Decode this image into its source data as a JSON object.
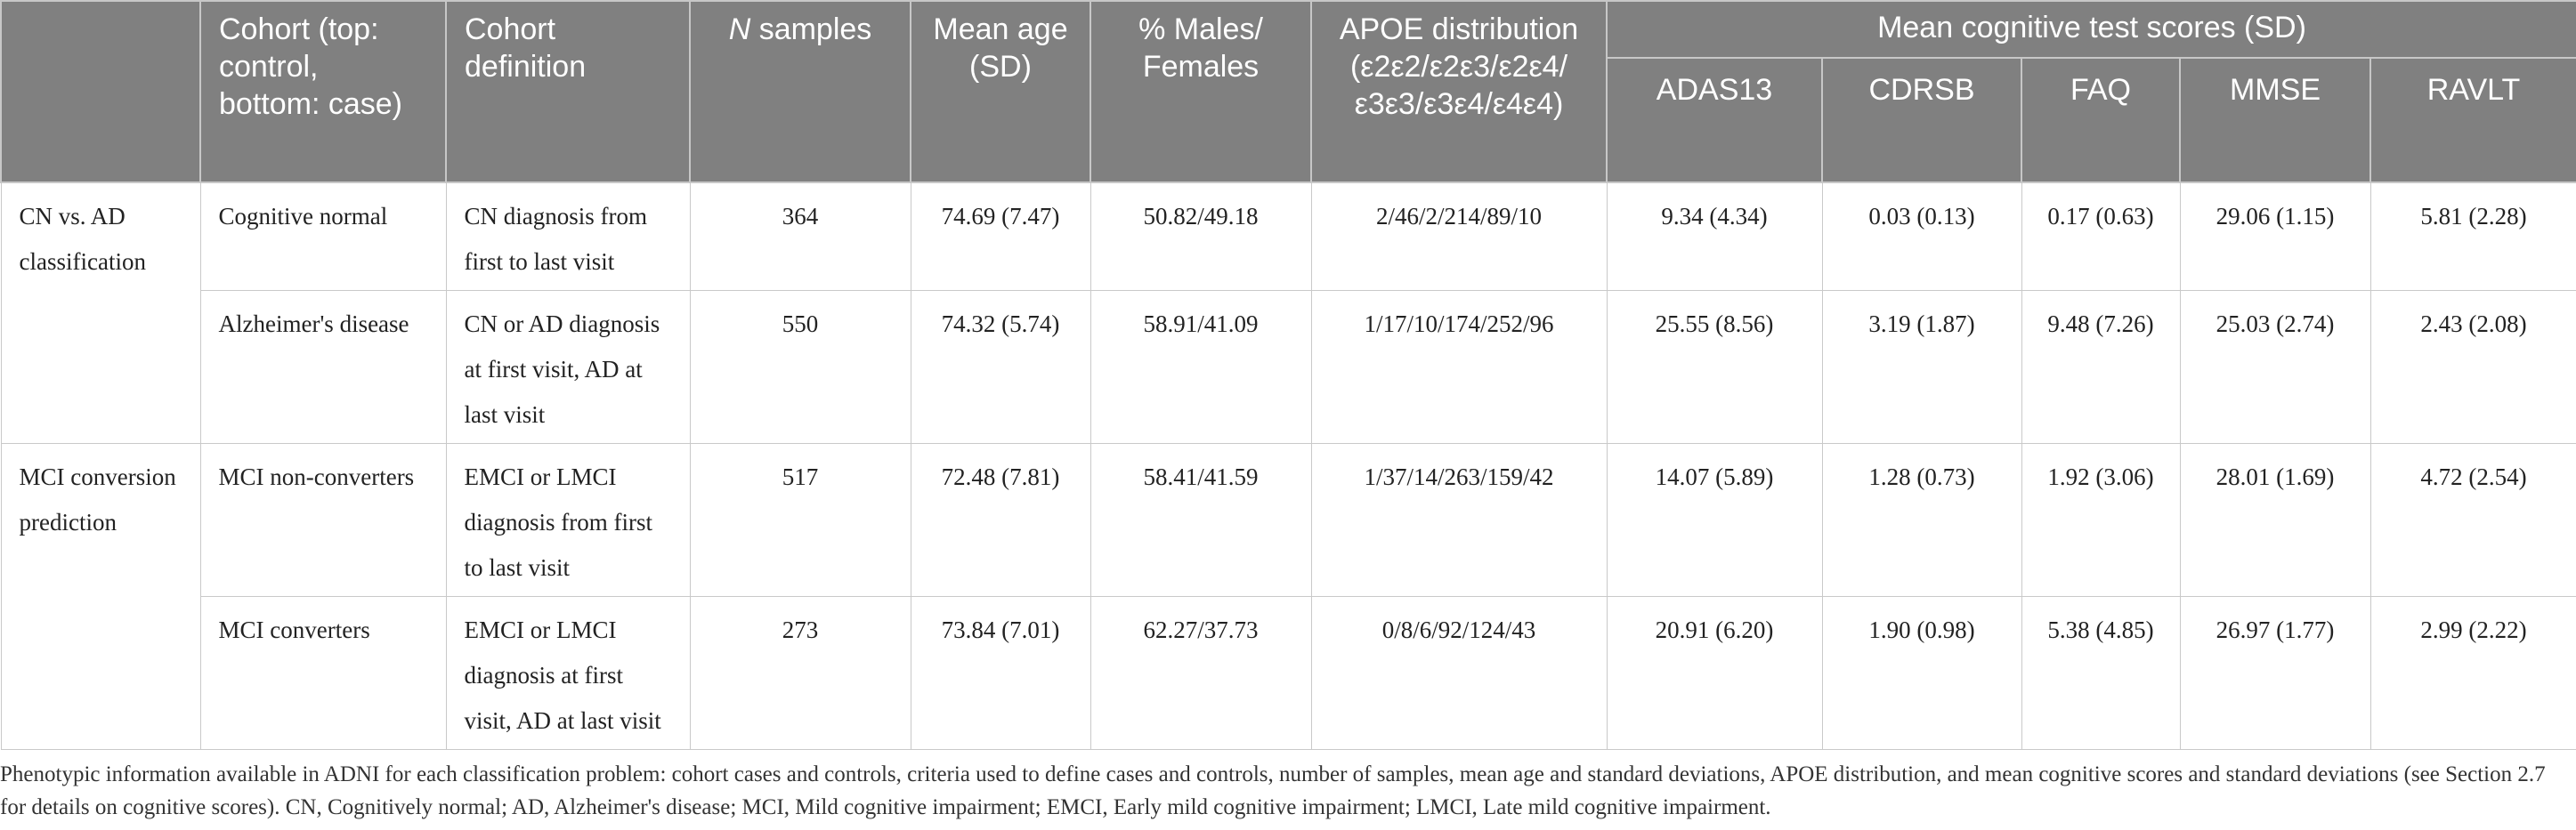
{
  "table": {
    "headers": {
      "problem": "",
      "cohort": "Cohort (top: control, bottom: case)",
      "definition": "Cohort definition",
      "n_samples_italic": "N",
      "n_samples_rest": " samples",
      "mean_age": "Mean age (SD)",
      "sex": "% Males/ Females",
      "apoe": "APOE distribution (ε2ε2/ε2ε3/ε2ε4/ ε3ε3/ε3ε4/ε4ε4)",
      "scores_group": "Mean cognitive test scores (SD)",
      "adas13": "ADAS13",
      "cdrsb": "CDRSB",
      "faq": "FAQ",
      "mmse": "MMSE",
      "ravlt": "RAVLT"
    },
    "groups": [
      {
        "problem": "CN vs. AD classification",
        "rows": [
          {
            "cohort": "Cognitive normal",
            "definition": "CN diagnosis from first to last visit",
            "n": "364",
            "age": "74.69 (7.47)",
            "sex": "50.82/49.18",
            "apoe": "2/46/2/214/89/10",
            "adas13": "9.34 (4.34)",
            "cdrsb": "0.03 (0.13)",
            "faq": "0.17 (0.63)",
            "mmse": "29.06 (1.15)",
            "ravlt": "5.81 (2.28)"
          },
          {
            "cohort": "Alzheimer's disease",
            "definition": "CN or AD diagnosis at first visit, AD at last visit",
            "n": "550",
            "age": "74.32 (5.74)",
            "sex": "58.91/41.09",
            "apoe": "1/17/10/174/252/96",
            "adas13": "25.55 (8.56)",
            "cdrsb": "3.19 (1.87)",
            "faq": "9.48 (7.26)",
            "mmse": "25.03 (2.74)",
            "ravlt": "2.43 (2.08)"
          }
        ]
      },
      {
        "problem": "MCI conversion prediction",
        "rows": [
          {
            "cohort": "MCI non-converters",
            "definition": "EMCI or LMCI diagnosis from first to last visit",
            "n": "517",
            "age": "72.48 (7.81)",
            "sex": "58.41/41.59",
            "apoe": "1/37/14/263/159/42",
            "adas13": "14.07 (5.89)",
            "cdrsb": "1.28 (0.73)",
            "faq": "1.92 (3.06)",
            "mmse": "28.01 (1.69)",
            "ravlt": "4.72 (2.54)"
          },
          {
            "cohort": "MCI converters",
            "definition": "EMCI or LMCI diagnosis at first visit, AD at last visit",
            "n": "273",
            "age": "73.84 (7.01)",
            "sex": "62.27/37.73",
            "apoe": "0/8/6/92/124/43",
            "adas13": "20.91 (6.20)",
            "cdrsb": "1.90 (0.98)",
            "faq": "5.38 (4.85)",
            "mmse": "26.97 (1.77)",
            "ravlt": "2.99 (2.22)"
          }
        ]
      }
    ]
  },
  "caption": "Phenotypic information available in ADNI for each classification problem: cohort cases and controls, criteria used to define cases and controls, number of samples, mean age and standard deviations, APOE distribution, and mean cognitive scores and standard deviations (see Section 2.7 for details on cognitive scores). CN, Cognitively normal; AD, Alzheimer's disease; MCI, Mild cognitive impairment; EMCI, Early mild cognitive impairment; LMCI, Late mild cognitive impairment."
}
